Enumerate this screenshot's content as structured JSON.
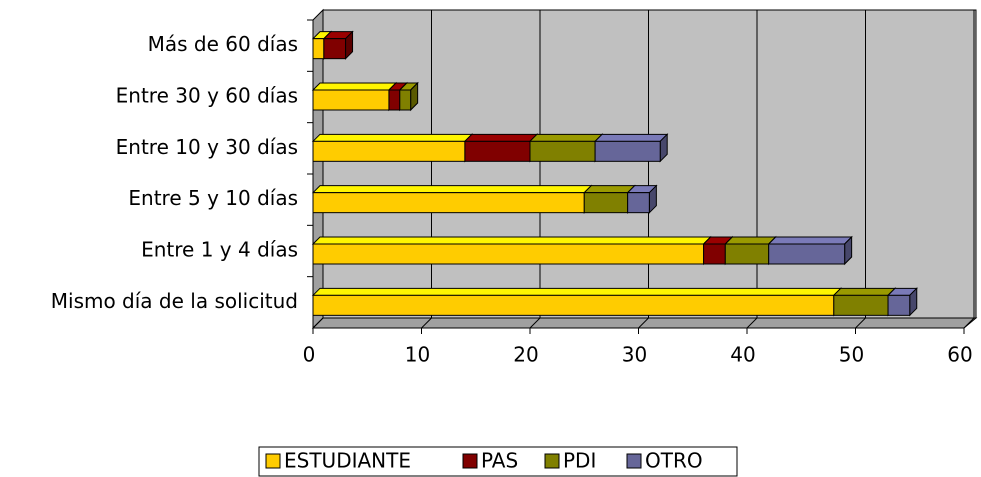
{
  "chart_data": {
    "type": "bar3d_stacked_horizontal",
    "categories": [
      "Más de 60 días",
      "Entre 30 y 60 días",
      "Entre 10 y 30 días",
      "Entre 5 y 10 días",
      "Entre 1 y 4 días",
      "Mismo día de la solicitud"
    ],
    "series": [
      {
        "name": "ESTUDIANTE",
        "color": "#FFCC00",
        "values": [
          1,
          7,
          14,
          25,
          36,
          48
        ]
      },
      {
        "name": "PAS",
        "color": "#800000",
        "values": [
          2,
          1,
          6,
          0,
          2,
          0
        ]
      },
      {
        "name": "PDI",
        "color": "#808000",
        "values": [
          0,
          1,
          6,
          4,
          4,
          5
        ]
      },
      {
        "name": "OTRO",
        "color": "#666699",
        "values": [
          0,
          0,
          6,
          2,
          7,
          2
        ]
      }
    ],
    "xlim": [
      0,
      60
    ],
    "xticks": [
      0,
      10,
      20,
      30,
      40,
      50,
      60
    ],
    "grid": true,
    "legend": "bottom"
  }
}
